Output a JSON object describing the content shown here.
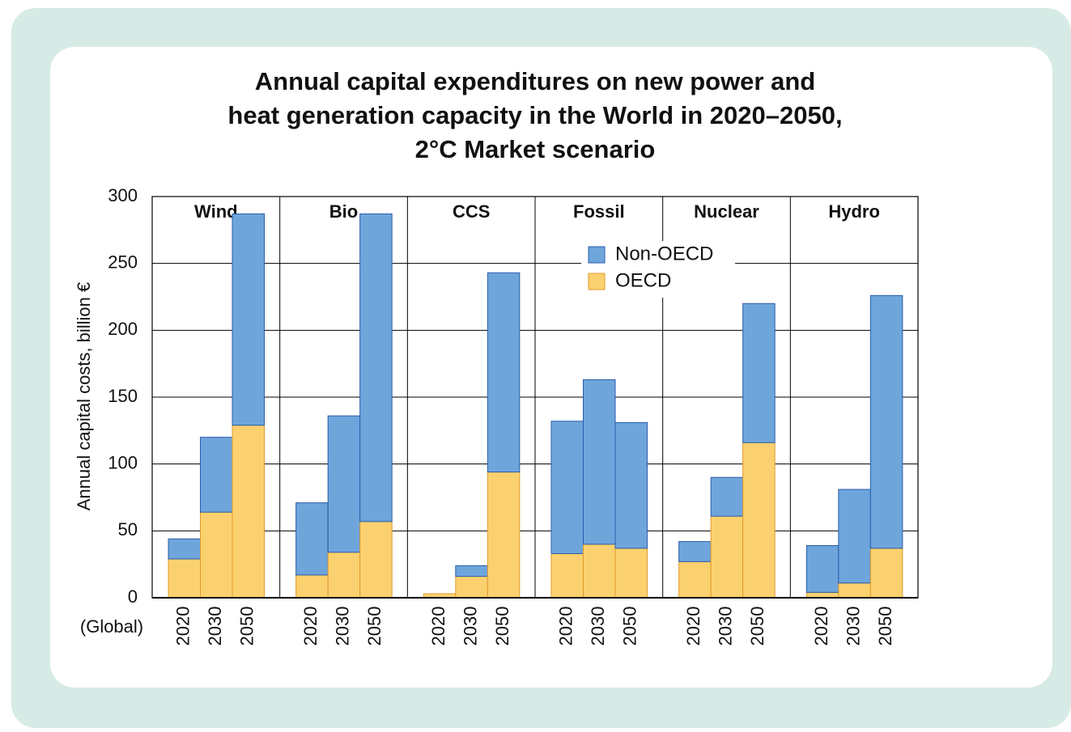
{
  "chart_data": {
    "type": "stacked-bar",
    "title": [
      "Annual capital expenditures on new power and",
      "heat generation capacity in the World in 2020–2050,",
      "2°C Market scenario"
    ],
    "y_label": "Annual capital costs, billion €",
    "x_label": "(Global)",
    "groups": [
      "Wind",
      "Bio",
      "CCS",
      "Fossil",
      "Nuclear",
      "Hydro"
    ],
    "categories": [
      "2020",
      "2030",
      "2050",
      "2020",
      "2030",
      "2050",
      "2020",
      "2030",
      "2050",
      "2020",
      "2030",
      "2050",
      "2020",
      "2030",
      "2050",
      "2020",
      "2030",
      "2050"
    ],
    "series": [
      {
        "name": "OECD",
        "color": "#fbd16f",
        "values": [
          29,
          64,
          129,
          17,
          34,
          57,
          3,
          16,
          94,
          33,
          40,
          37,
          27,
          61,
          116,
          4,
          11,
          37
        ]
      },
      {
        "name": "Non-OECD",
        "color": "#6ea6dc",
        "values": [
          15,
          56,
          158,
          54,
          102,
          230,
          0,
          8,
          149,
          99,
          123,
          94,
          15,
          29,
          104,
          35,
          70,
          189
        ]
      }
    ],
    "ylim": [
      0,
      300
    ],
    "yticks": [
      0,
      50,
      100,
      150,
      200,
      250,
      300
    ],
    "grid": true
  }
}
